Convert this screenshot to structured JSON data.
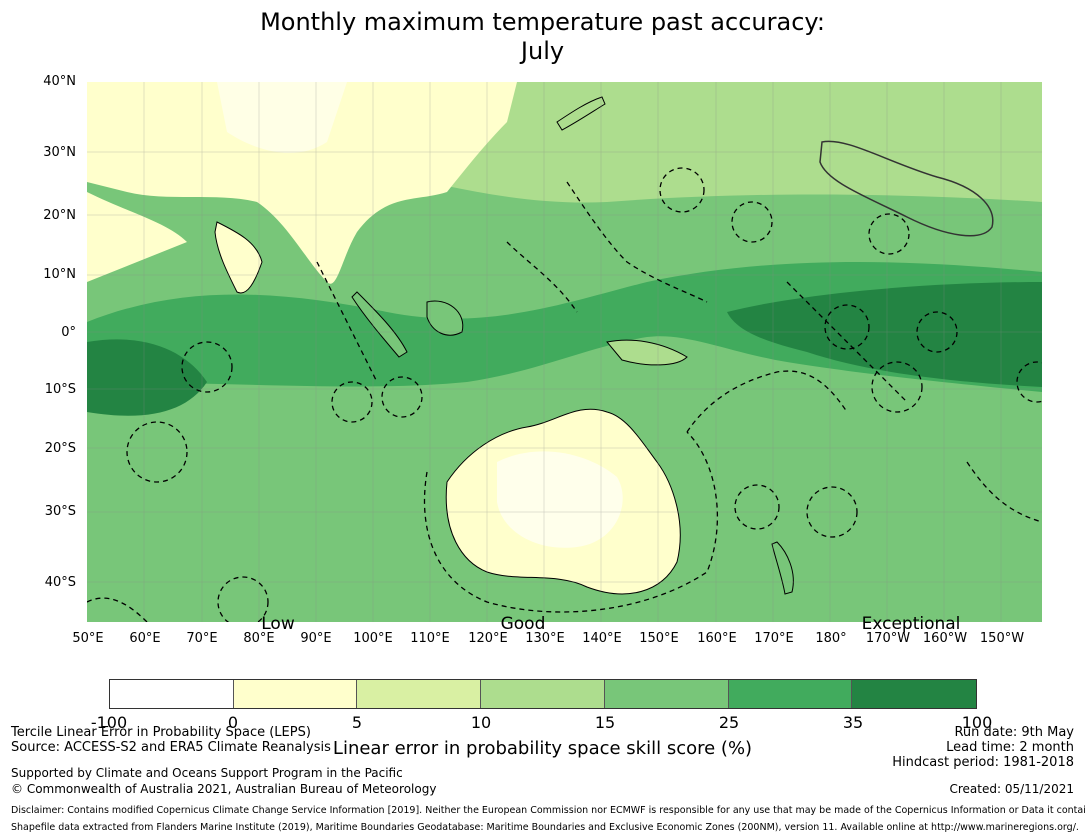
{
  "title": {
    "line1": "Monthly maximum temperature past accuracy:",
    "line2": "July"
  },
  "map": {
    "lat_labels": [
      "40°N",
      "30°N",
      "20°N",
      "10°N",
      "0°",
      "10°S",
      "20°S",
      "30°S",
      "40°S"
    ],
    "lon_labels": [
      "50°E",
      "60°E",
      "70°E",
      "80°E",
      "90°E",
      "100°E",
      "110°E",
      "120°E",
      "130°E",
      "140°E",
      "150°E",
      "160°E",
      "170°E",
      "180°",
      "170°W",
      "160°W",
      "150°W"
    ],
    "extent": {
      "lon_min": 50,
      "lon_max": 217,
      "lat_min": -46,
      "lat_max": 40
    },
    "category_labels": {
      "low": "Low",
      "good": "Good",
      "exceptional": "Exceptional"
    }
  },
  "colorbar": {
    "ticks": [
      "-100",
      "0",
      "5",
      "10",
      "15",
      "25",
      "35",
      "100"
    ],
    "colors": [
      "#ffffff",
      "#ffffcc",
      "#d9f0a3",
      "#addd8e",
      "#78c679",
      "#41ab5d",
      "#238443"
    ],
    "label": "Linear error in probability space skill score (%)"
  },
  "footer": {
    "method": "Tercile Linear Error in Probability Space (LEPS)",
    "source": "Source: ACCESS-S2 and ERA5 Climate Reanalysis",
    "support": "Supported by Climate and Oceans Support Program in the Pacific",
    "copyright": "© Commonwealth of Australia 2021, Australian Bureau of Meteorology",
    "run_date": "Run date: 9th May",
    "lead_time": "Lead time: 2 month",
    "hindcast": "Hindcast period: 1981-2018",
    "created": "Created: 05/11/2021",
    "disclaimer1": "Disclaimer: Contains modified Copernicus Climate Change Service Information [2019]. Neither the European Commission nor ECMWF is responsible for any use that may be made of the Copernicus Information or Data it contains.",
    "disclaimer2": "Shapefile data extracted from Flanders Marine Institute (2019), Maritime Boundaries Geodatabase: Maritime Boundaries and Exclusive Economic Zones (200NM), version 11. Available online at http://www.marineregions.org/."
  }
}
